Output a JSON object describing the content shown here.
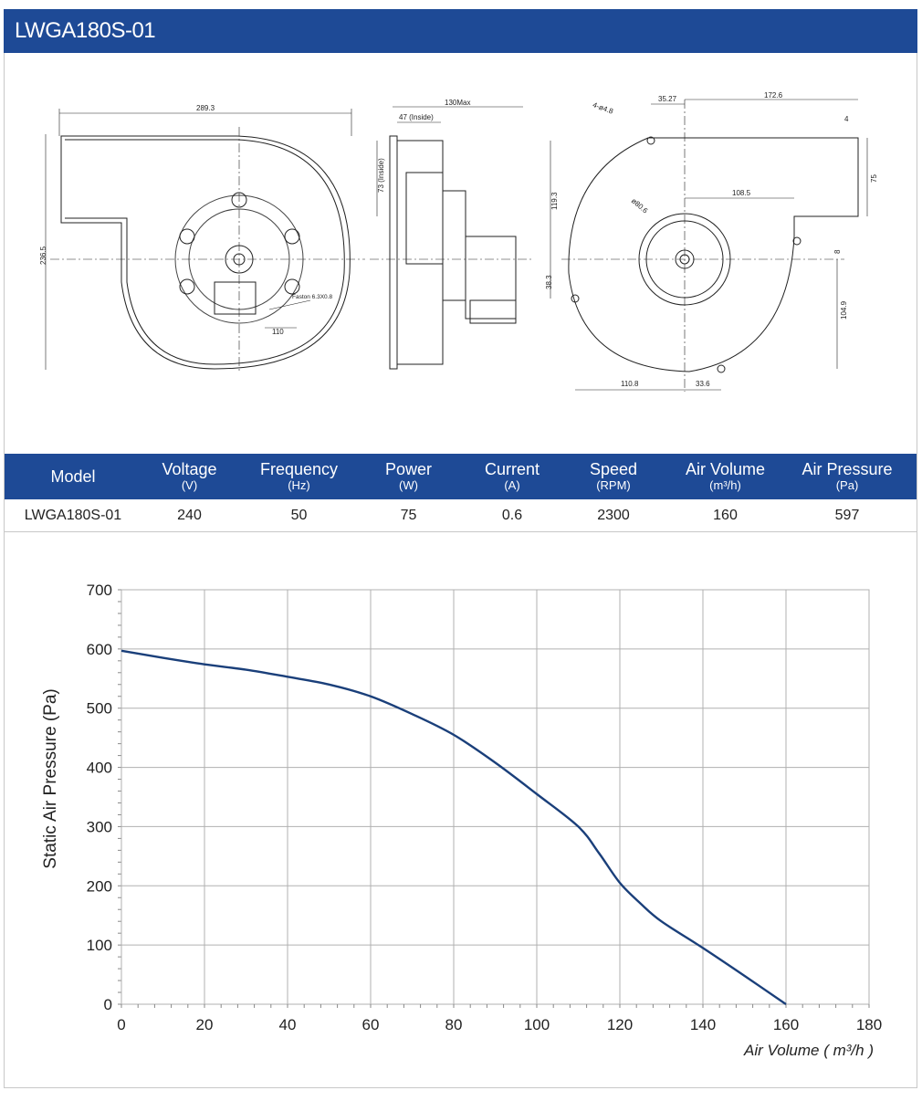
{
  "header": {
    "title": "LWGA180S-01"
  },
  "drawing": {
    "dims": {
      "width_289": "289.3",
      "height_236": "236.5",
      "d110": "110",
      "faston": "Faston 6.3X0.8",
      "d130": "130Max",
      "d47": "47 (Inside)",
      "d73": "73 (Inside)",
      "d35": "35.27",
      "d172": "172.6",
      "d4": "4",
      "holes": "4-ø4.8",
      "d75": "75",
      "d119": "119.3",
      "phi": "ø80.6",
      "d108": "108.5",
      "d8": "8",
      "d38": "38.3",
      "d104": "104.9",
      "d110_8": "110.8",
      "d33": "33.6"
    }
  },
  "specs": {
    "headers": [
      {
        "label": "Model",
        "unit": ""
      },
      {
        "label": "Voltage",
        "unit": "(V)"
      },
      {
        "label": "Frequency",
        "unit": "(Hz)"
      },
      {
        "label": "Power",
        "unit": "(W)"
      },
      {
        "label": "Current",
        "unit": "(A)"
      },
      {
        "label": "Speed",
        "unit": "(RPM)"
      },
      {
        "label": "Air Volume",
        "unit": "(m³/h)"
      },
      {
        "label": "Air Pressure",
        "unit": "(Pa)"
      }
    ],
    "row": [
      "LWGA180S-01",
      "240",
      "50",
      "75",
      "0.6",
      "2300",
      "160",
      "597"
    ]
  },
  "chart_data": {
    "type": "line",
    "title": "",
    "xlabel": "Air Volume ( m³/h )",
    "ylabel": "Static Air Pressure  (Pa)",
    "xlim": [
      0,
      180
    ],
    "ylim": [
      0,
      700
    ],
    "x_ticks": [
      "0",
      "20",
      "40",
      "60",
      "80",
      "100",
      "120",
      "140",
      "160",
      "180"
    ],
    "y_ticks": [
      "0",
      "100",
      "200",
      "300",
      "400",
      "500",
      "600",
      "700"
    ],
    "grid": true,
    "series": [
      {
        "color": "#1a3f7a",
        "x": [
          0,
          10,
          20,
          30,
          40,
          50,
          60,
          70,
          80,
          90,
          100,
          110,
          115,
          120,
          125,
          130,
          140,
          150,
          160
        ],
        "y": [
          597,
          585,
          574,
          565,
          553,
          540,
          520,
          490,
          455,
          408,
          355,
          300,
          255,
          205,
          170,
          140,
          95,
          48,
          0
        ]
      }
    ]
  }
}
